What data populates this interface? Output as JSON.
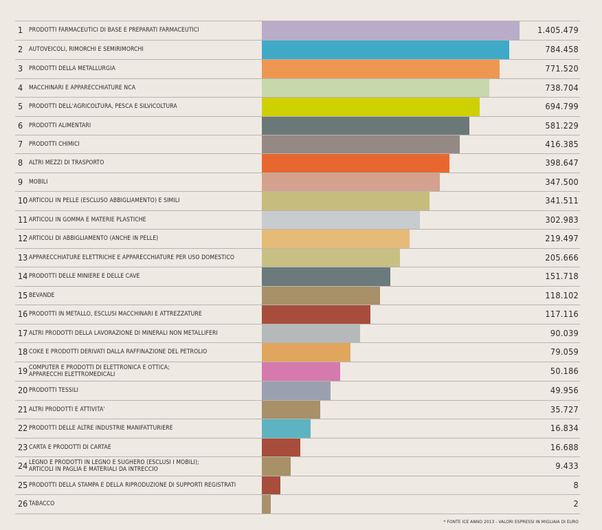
{
  "chart_data": {
    "type": "bar",
    "orientation": "horizontal",
    "title": "",
    "xlabel": "",
    "ylabel": "",
    "grid": false,
    "legend": "none",
    "note": "* FONTE ICE ANNO 2013 - VALORI ESPRESSI IN MIGLIAIA DI EURO",
    "rows": [
      {
        "rank": "1",
        "label": "PRODOTTI FARMACEUTICI DI BASE E PREPARATI FARMACEUTICI",
        "value": 1405479,
        "value_label": "1.405.479",
        "color": "#b8adc9"
      },
      {
        "rank": "2",
        "label": "AUTOVEICOLI, RIMORCHI E SEMIRIMORCHI",
        "value": 784458,
        "value_label": "784.458",
        "color": "#3fa9c8"
      },
      {
        "rank": "3",
        "label": "PRODOTTI DELLA METALLURGIA",
        "value": 771520,
        "value_label": "771.520",
        "color": "#ef9650"
      },
      {
        "rank": "4",
        "label": "MACCHINARI E APPARECCHIATURE NCA",
        "value": 738704,
        "value_label": "738.704",
        "color": "#c7d8ac"
      },
      {
        "rank": "5",
        "label": "PRODOTTI DELL'AGRICOLTURA, PESCA E SILVICOLTURA",
        "value": 694799,
        "value_label": "694.799",
        "color": "#cfd000"
      },
      {
        "rank": "6",
        "label": "PRODOTTI ALIMENTARI",
        "value": 581229,
        "value_label": "581.229",
        "color": "#6b7878"
      },
      {
        "rank": "7",
        "label": "PRODOTTI CHIMICI",
        "value": 416385,
        "value_label": "416.385",
        "color": "#958985"
      },
      {
        "rank": "8",
        "label": "ALTRI MEZZI DI TRASPORTO",
        "value": 398647,
        "value_label": "398.647",
        "color": "#e7672f"
      },
      {
        "rank": "9",
        "label": "MOBILI",
        "value": 347500,
        "value_label": "347.500",
        "color": "#d4a18e"
      },
      {
        "rank": "10",
        "label": "ARTICOLI IN PELLE (ESCLUSO ABBIGLIAMENTO) E SIMILI",
        "value": 341511,
        "value_label": "341.511",
        "color": "#c6bc7e"
      },
      {
        "rank": "11",
        "label": "ARTICOLI IN GOMMA E MATERIE PLASTICHE",
        "value": 302983,
        "value_label": "302.983",
        "color": "#c8ccce"
      },
      {
        "rank": "12",
        "label": "ARTICOLI DI ABBIGLIAMENTO (ANCHE IN PELLE)",
        "value": 219497,
        "value_label": "219.497",
        "color": "#e6bb78"
      },
      {
        "rank": "13",
        "label": "APPARECCHIATURE ELETTRICHE E APPARECCHIATURE PER USO DOMESTICO",
        "value": 205666,
        "value_label": "205.666",
        "color": "#c8bf82"
      },
      {
        "rank": "14",
        "label": "PRODOTTI DELLE MINIERE E DELLE CAVE",
        "value": 151718,
        "value_label": "151.718",
        "color": "#6b7a7c"
      },
      {
        "rank": "15",
        "label": "BEVANDE",
        "value": 118102,
        "value_label": "118.102",
        "color": "#a89068"
      },
      {
        "rank": "16",
        "label": "PRODOTTI IN METALLO, ESCLUSI MACCHINARI E ATTREZZATURE",
        "value": 117116,
        "value_label": "117.116",
        "color": "#a84d3b"
      },
      {
        "rank": "17",
        "label": "ALTRI PRODOTTI DELLA LAVORAZIONE DI MINERALI NON METALLIFERI",
        "value": 90039,
        "value_label": "90.039",
        "color": "#b6b9ba"
      },
      {
        "rank": "18",
        "label": "COKE E PRODOTTI DERIVATI DALLA RAFFINAZIONE DEL PETROLIO",
        "value": 79059,
        "value_label": "79.059",
        "color": "#e0a65e"
      },
      {
        "rank": "19",
        "label": "COMPUTER E PRODOTTI DI ELETTRONICA E OTTICA;\nAPPARECCHI ELETTROMEDICALI",
        "value": 50186,
        "value_label": "50.186",
        "color": "#d67aad"
      },
      {
        "rank": "20",
        "label": "PRODOTTI TESSILI",
        "value": 49956,
        "value_label": "49.956",
        "color": "#9aa0b0"
      },
      {
        "rank": "21",
        "label": "ALTRI PRODOTTI E ATTIVITA'",
        "value": 35727,
        "value_label": "35.727",
        "color": "#a89068"
      },
      {
        "rank": "22",
        "label": "PRODOTTI DELLE ALTRE INDUSTRIE MANIFATTURIERE",
        "value": 16834,
        "value_label": "16.834",
        "color": "#5db3c1"
      },
      {
        "rank": "23",
        "label": "CARTA E PRODOTTI DI CARTAE",
        "value": 16688,
        "value_label": "16.688",
        "color": "#a84d3b"
      },
      {
        "rank": "24",
        "label": "LEGNO E PRODOTTI IN LEGNO E SUGHERO (ESCLUSI I MOBILI);\nARTICOLI IN PAGLIA E MATERIALI DA INTRECCIO",
        "value": 9433,
        "value_label": "9.433",
        "color": "#a89068"
      },
      {
        "rank": "25",
        "label": "PRODOTTI DELLA STAMPA E DELLA RIPRODUZIONE DI SUPPORTI REGISTRATI",
        "value": 8,
        "value_label": "8",
        "color": "#a84d3b"
      },
      {
        "rank": "26",
        "label": "TABACCO",
        "value": 2,
        "value_label": "2",
        "color": "#a89068"
      }
    ]
  }
}
